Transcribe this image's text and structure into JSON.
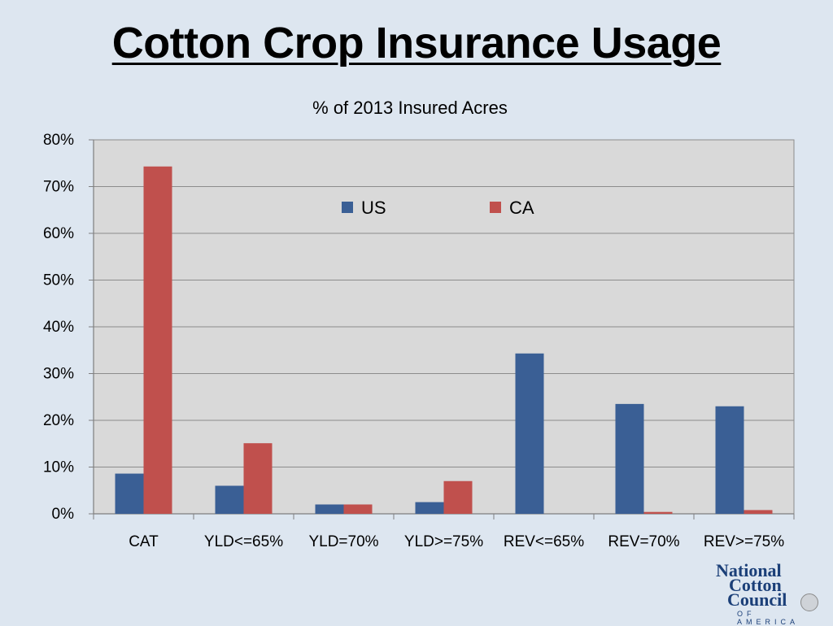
{
  "slide": {
    "title": "Cotton Crop Insurance Usage"
  },
  "logo": {
    "line1": "National",
    "line2": "Cotton",
    "line3": "Council",
    "line4": "OF AMERICA"
  },
  "chart_data": {
    "type": "bar",
    "title": "% of 2013 Insured Acres",
    "categories": [
      "CAT",
      "YLD<=65%",
      "YLD=70%",
      "YLD>=75%",
      "REV<=65%",
      "REV=70%",
      "REV>=75%"
    ],
    "series": [
      {
        "name": "US",
        "color": "#3a5f95",
        "values": [
          8.6,
          6.0,
          2.0,
          2.5,
          34.3,
          23.5,
          23.0
        ]
      },
      {
        "name": "CA",
        "color": "#c0504d",
        "values": [
          74.3,
          15.1,
          2.0,
          7.0,
          0.0,
          0.4,
          0.8
        ]
      }
    ],
    "ylim": [
      0,
      80
    ],
    "yticks": [
      "0%",
      "10%",
      "20%",
      "30%",
      "40%",
      "50%",
      "60%",
      "70%",
      "80%"
    ],
    "grid": true,
    "legend": "top-center",
    "plot_background": "#d9d9d9"
  }
}
